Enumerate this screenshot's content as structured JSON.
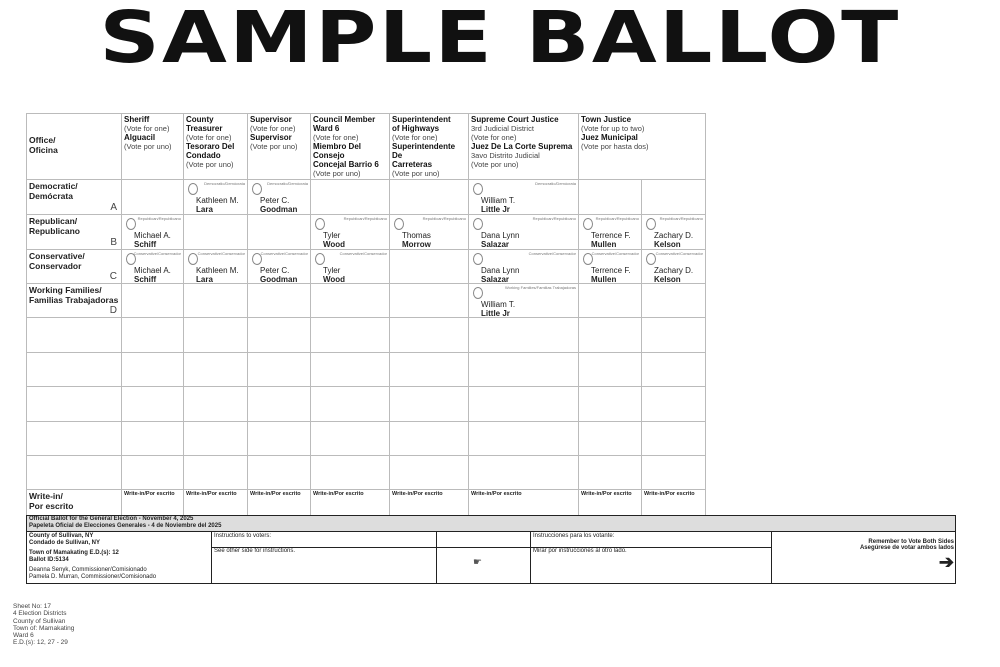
{
  "title": "SAMPLE BALLOT",
  "office_header": "Office/\nOficina",
  "columns": [
    {
      "lines": [
        [
          "Sheriff",
          1
        ],
        [
          "(Vote for one)",
          0
        ],
        [
          "Alguacil",
          1
        ],
        [
          "(Vote por uno)",
          0
        ]
      ],
      "span": 1
    },
    {
      "lines": [
        [
          "County Treasurer",
          1
        ],
        [
          "(Vote for one)",
          0
        ],
        [
          "Tesoraro Del",
          1
        ],
        [
          "Condado",
          1
        ],
        [
          "(Vote por uno)",
          0
        ]
      ],
      "span": 1
    },
    {
      "lines": [
        [
          "Supervisor",
          1
        ],
        [
          "(Vote for one)",
          0
        ],
        [
          "Supervisor",
          1
        ],
        [
          "(Vote por uno)",
          0
        ]
      ],
      "span": 1
    },
    {
      "lines": [
        [
          "Council Member",
          1
        ],
        [
          "Ward 6",
          1
        ],
        [
          "(Vote for one)",
          0
        ],
        [
          "Miembro Del Consejo",
          1
        ],
        [
          "Concejal Barrio 6",
          1
        ],
        [
          "(Vote por uno)",
          0
        ]
      ],
      "span": 1
    },
    {
      "lines": [
        [
          "Superintendent",
          1
        ],
        [
          "of Highways",
          1
        ],
        [
          "(Vote for one)",
          0
        ],
        [
          "Superintendente De",
          1
        ],
        [
          "Carreteras",
          1
        ],
        [
          "(Vote por uno)",
          0
        ]
      ],
      "span": 1
    },
    {
      "lines": [
        [
          "Supreme Court Justice",
          1
        ],
        [
          "3rd Judicial District",
          0
        ],
        [
          "(Vote for one)",
          0
        ],
        [
          "Juez De La Corte Suprema",
          1
        ],
        [
          "3avo Distrito Judicial",
          0
        ],
        [
          "(Vote por uno)",
          0
        ]
      ],
      "span": 1
    },
    {
      "lines": [
        [
          "Town Justice",
          1
        ],
        [
          "(Vote for up to two)",
          0
        ],
        [
          "Juez Municipal",
          1
        ],
        [
          "(Vote por hasta dos)",
          0
        ]
      ],
      "span": 2
    }
  ],
  "rows": [
    {
      "party": "Democratic/\nDemócrata",
      "letter": "A",
      "cells": [
        null,
        {
          "label": "Democratic/Demócrata",
          "first": "Kathleen M.",
          "last": "Lara"
        },
        {
          "label": "Democratic/Demócrata",
          "first": "Peter C.",
          "last": "Goodman"
        },
        null,
        null,
        {
          "label": "Democratic/Demócrata",
          "first": "William T.",
          "last": "Little Jr"
        },
        null,
        null
      ]
    },
    {
      "party": "Republican/\nRepublicano",
      "letter": "B",
      "cells": [
        {
          "label": "Republican/Republicano",
          "first": "Michael A.",
          "last": "Schiff"
        },
        null,
        null,
        {
          "label": "Republican/Republicano",
          "first": "Tyler",
          "last": "Wood"
        },
        {
          "label": "Republican/Republicano",
          "first": "Thomas",
          "last": "Morrow"
        },
        {
          "label": "Republican/Republicano",
          "first": "Dana Lynn",
          "last": "Salazar"
        },
        {
          "label": "Republican/Republicano",
          "first": "Terrence F.",
          "last": "Mullen"
        },
        {
          "label": "Republican/Republicano",
          "first": "Zachary D.",
          "last": "Kelson"
        }
      ]
    },
    {
      "party": "Conservative/\nConservador",
      "letter": "C",
      "cells": [
        {
          "label": "Conservative/Conservador",
          "first": "Michael A.",
          "last": "Schiff"
        },
        {
          "label": "Conservative/Conservador",
          "first": "Kathleen M.",
          "last": "Lara"
        },
        {
          "label": "Conservative/Conservador",
          "first": "Peter C.",
          "last": "Goodman"
        },
        {
          "label": "Conservative/Conservador",
          "first": "Tyler",
          "last": "Wood"
        },
        null,
        {
          "label": "Conservative/Conservador",
          "first": "Dana Lynn",
          "last": "Salazar"
        },
        {
          "label": "Conservative/Conservador",
          "first": "Terrence F.",
          "last": "Mullen"
        },
        {
          "label": "Conservative/Conservador",
          "first": "Zachary D.",
          "last": "Kelson"
        }
      ]
    },
    {
      "party": "Working Families/\nFamilias Trabajadoras",
      "letter": "D",
      "cells": [
        null,
        null,
        null,
        null,
        null,
        {
          "label": "Working Families/Familias Trabajadoras",
          "first": "William T.",
          "last": "Little Jr"
        },
        null,
        null
      ]
    }
  ],
  "write_in": {
    "party": "Write-in/\nPor escrito",
    "label": "Write-in/Por escrito"
  },
  "footer": {
    "title_en": "Official Ballot for the General Election - November 4, 2025",
    "title_es": "Papeleta Oficial de Elecciones Generales - 4 de Noviembre del 2025",
    "county_en": "County of Sullivan, NY",
    "county_es": "Condado de Sullivan, NY",
    "town": "Town of Mamakating E.D.(s): 12",
    "ballot_id": "Ballot ID:5134",
    "commissioner1": "Deanna Senyk, Commissioner/Comisionado",
    "commissioner2": "Pamela D. Murran, Commissioner/Comisionado",
    "instr_en_head": "Instructions to voters:",
    "instr_en_body": "See other side for instructions.",
    "instr_es_head": "Instrucciones para los votante:",
    "instr_es_body": "Mirar por instrucciones al otro lado.",
    "remember_en": "Remember to Vote Both Sides",
    "remember_es": "Asegúrese de votar ambos lados"
  },
  "sheet_info": [
    "Sheet No: 17",
    "4 Election Districts",
    "County of Sullivan",
    "Town of: Mamakating",
    "Ward 6",
    "E.D.(s): 12, 27 - 29"
  ]
}
